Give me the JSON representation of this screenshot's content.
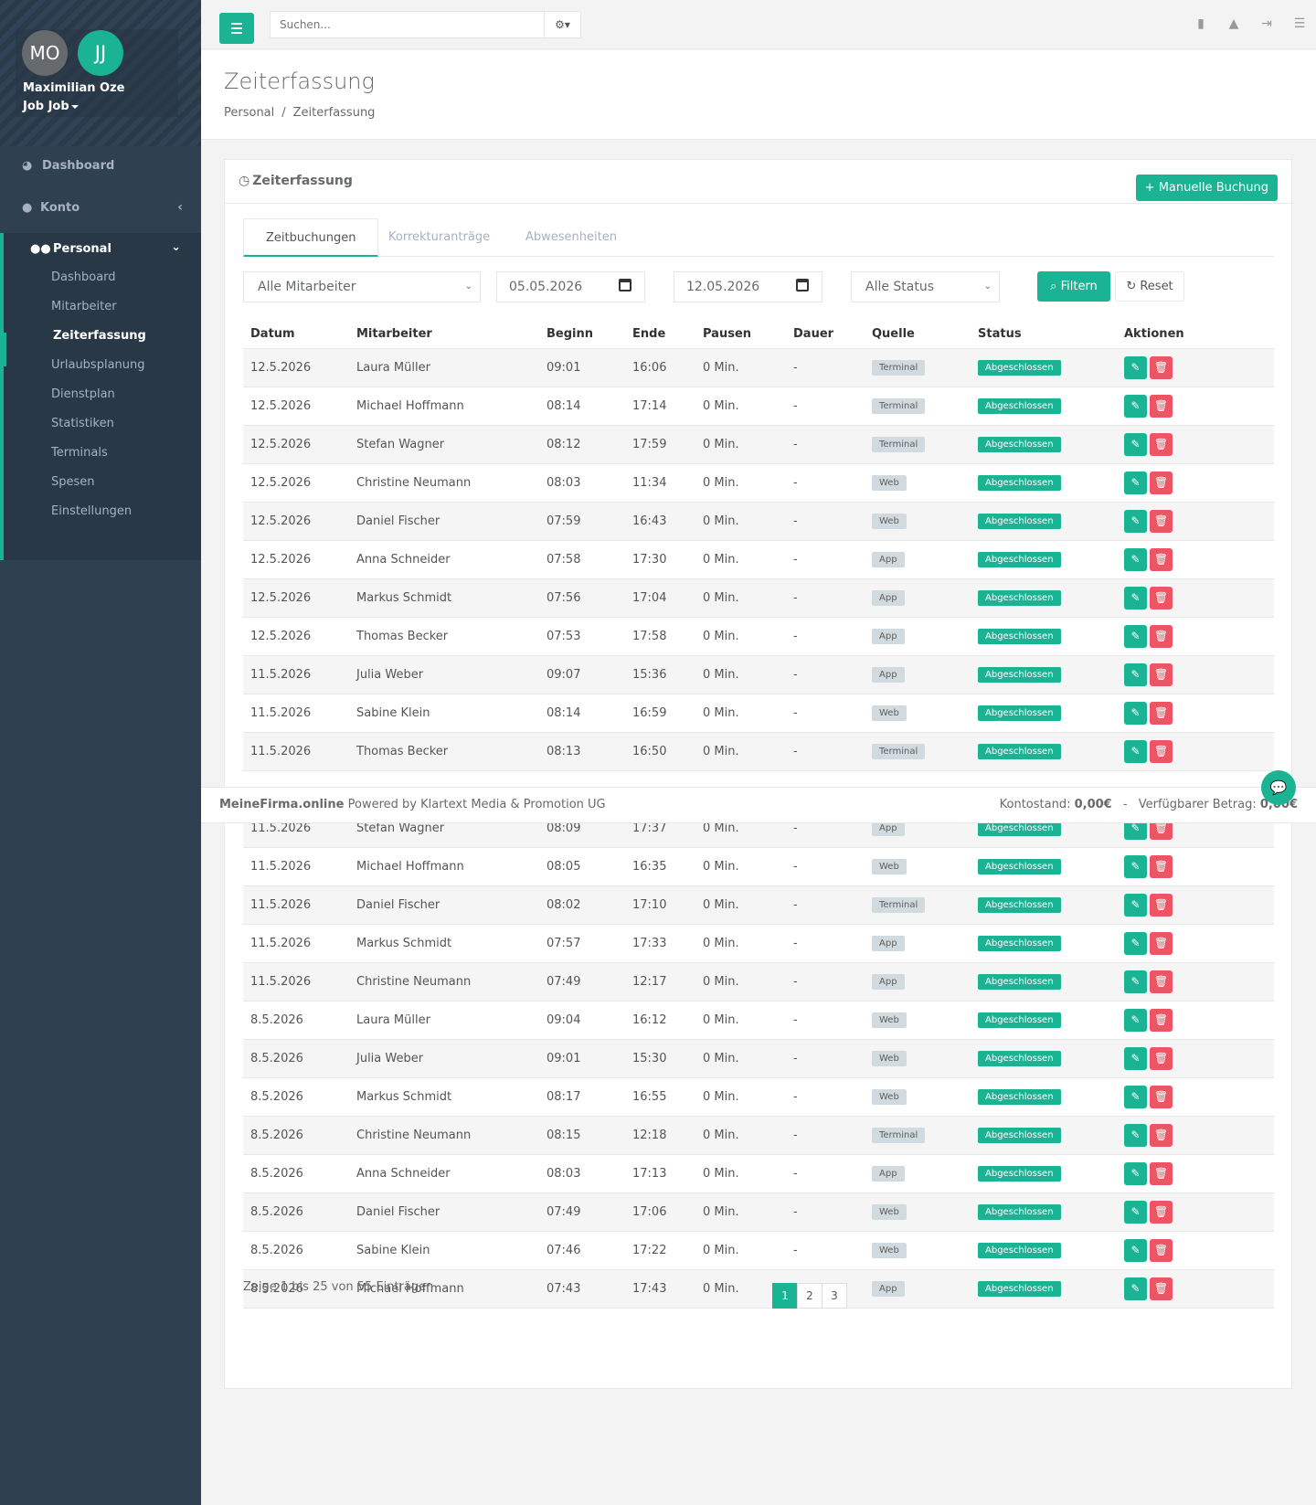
{
  "profile": {
    "initials_1": "MO",
    "initials_2": "JJ",
    "name": "Maximilian Oze",
    "job": "Job Job"
  },
  "nav": {
    "dashboard": "Dashboard",
    "konto": "Konto",
    "personal": "Personal",
    "sub": [
      "Dashboard",
      "Mitarbeiter",
      "Zeiterfassung",
      "Urlaubsplanung",
      "Dienstplan",
      "Statistiken",
      "Terminals",
      "Spesen",
      "Einstellungen"
    ]
  },
  "search": {
    "placeholder": "Suchen..."
  },
  "page": {
    "title": "Zeiterfassung",
    "breadcrumb": [
      "Personal",
      "Zeiterfassung"
    ]
  },
  "card": {
    "title": "Zeiterfassung",
    "manual_button": "Manuelle Buchung"
  },
  "tabs": [
    "Zeitbuchungen",
    "Korrekturanträge",
    "Abwesenheiten"
  ],
  "filters": {
    "employee": "Alle Mitarbeiter",
    "from": "05.05.2026",
    "to": "12.05.2026",
    "status": "Alle Status",
    "filter_button": "Filtern",
    "reset_button": "Reset"
  },
  "table": {
    "headers": [
      "Datum",
      "Mitarbeiter",
      "Beginn",
      "Ende",
      "Pausen",
      "Dauer",
      "Quelle",
      "Status",
      "Aktionen"
    ],
    "rows": [
      [
        "12.5.2026",
        "Laura Müller",
        "09:01",
        "16:06",
        "0 Min.",
        "-",
        "Terminal",
        "Abgeschlossen"
      ],
      [
        "12.5.2026",
        "Michael Hoffmann",
        "08:14",
        "17:14",
        "0 Min.",
        "-",
        "Terminal",
        "Abgeschlossen"
      ],
      [
        "12.5.2026",
        "Stefan Wagner",
        "08:12",
        "17:59",
        "0 Min.",
        "-",
        "Terminal",
        "Abgeschlossen"
      ],
      [
        "12.5.2026",
        "Christine Neumann",
        "08:03",
        "11:34",
        "0 Min.",
        "-",
        "Web",
        "Abgeschlossen"
      ],
      [
        "12.5.2026",
        "Daniel Fischer",
        "07:59",
        "16:43",
        "0 Min.",
        "-",
        "Web",
        "Abgeschlossen"
      ],
      [
        "12.5.2026",
        "Anna Schneider",
        "07:58",
        "17:30",
        "0 Min.",
        "-",
        "App",
        "Abgeschlossen"
      ],
      [
        "12.5.2026",
        "Markus Schmidt",
        "07:56",
        "17:04",
        "0 Min.",
        "-",
        "App",
        "Abgeschlossen"
      ],
      [
        "12.5.2026",
        "Thomas Becker",
        "07:53",
        "17:58",
        "0 Min.",
        "-",
        "App",
        "Abgeschlossen"
      ],
      [
        "11.5.2026",
        "Julia Weber",
        "09:07",
        "15:36",
        "0 Min.",
        "-",
        "App",
        "Abgeschlossen"
      ],
      [
        "11.5.2026",
        "Sabine Klein",
        "08:14",
        "16:59",
        "0 Min.",
        "-",
        "Web",
        "Abgeschlossen"
      ],
      [
        "11.5.2026",
        "Thomas Becker",
        "08:13",
        "16:50",
        "0 Min.",
        "-",
        "Terminal",
        "Abgeschlossen"
      ],
      [
        "",
        "",
        "",
        "",
        "",
        "",
        "",
        ""
      ],
      [
        "11.5.2026",
        "Stefan Wagner",
        "08:09",
        "17:37",
        "0 Min.",
        "-",
        "App",
        "Abgeschlossen"
      ],
      [
        "11.5.2026",
        "Michael Hoffmann",
        "08:05",
        "16:35",
        "0 Min.",
        "-",
        "Web",
        "Abgeschlossen"
      ],
      [
        "11.5.2026",
        "Daniel Fischer",
        "08:02",
        "17:10",
        "0 Min.",
        "-",
        "Terminal",
        "Abgeschlossen"
      ],
      [
        "11.5.2026",
        "Markus Schmidt",
        "07:57",
        "17:33",
        "0 Min.",
        "-",
        "App",
        "Abgeschlossen"
      ],
      [
        "11.5.2026",
        "Christine Neumann",
        "07:49",
        "12:17",
        "0 Min.",
        "-",
        "App",
        "Abgeschlossen"
      ],
      [
        "8.5.2026",
        "Laura Müller",
        "09:04",
        "16:12",
        "0 Min.",
        "-",
        "Web",
        "Abgeschlossen"
      ],
      [
        "8.5.2026",
        "Julia Weber",
        "09:01",
        "15:30",
        "0 Min.",
        "-",
        "Web",
        "Abgeschlossen"
      ],
      [
        "8.5.2026",
        "Markus Schmidt",
        "08:17",
        "16:55",
        "0 Min.",
        "-",
        "Web",
        "Abgeschlossen"
      ],
      [
        "8.5.2026",
        "Christine Neumann",
        "08:15",
        "12:18",
        "0 Min.",
        "-",
        "Terminal",
        "Abgeschlossen"
      ],
      [
        "8.5.2026",
        "Anna Schneider",
        "08:03",
        "17:13",
        "0 Min.",
        "-",
        "App",
        "Abgeschlossen"
      ],
      [
        "8.5.2026",
        "Daniel Fischer",
        "07:49",
        "17:06",
        "0 Min.",
        "-",
        "Web",
        "Abgeschlossen"
      ],
      [
        "8.5.2026",
        "Sabine Klein",
        "07:46",
        "17:22",
        "0 Min.",
        "-",
        "Web",
        "Abgeschlossen"
      ],
      [
        "8.5.2026",
        "Michael Hoffmann",
        "07:43",
        "17:43",
        "0 Min.",
        "-",
        "App",
        "Abgeschlossen"
      ]
    ]
  },
  "pagination": {
    "info": "Zeige 1 bis 25 von 55 Einträgen",
    "pages": [
      "1",
      "2",
      "3"
    ],
    "current": "1"
  },
  "footer": {
    "brand": "MeineFirma.online",
    "powered": "Powered by Klartext Media & Promotion UG",
    "balance_label": "Kontostand:",
    "balance_value": "0,00€",
    "separator": "-",
    "available_label": "Verfügbarer Betrag:",
    "available_value": "0,00€"
  },
  "colors": {
    "accent": "#1ab394",
    "danger": "#ed5565",
    "sidebar": "#2f4050"
  }
}
